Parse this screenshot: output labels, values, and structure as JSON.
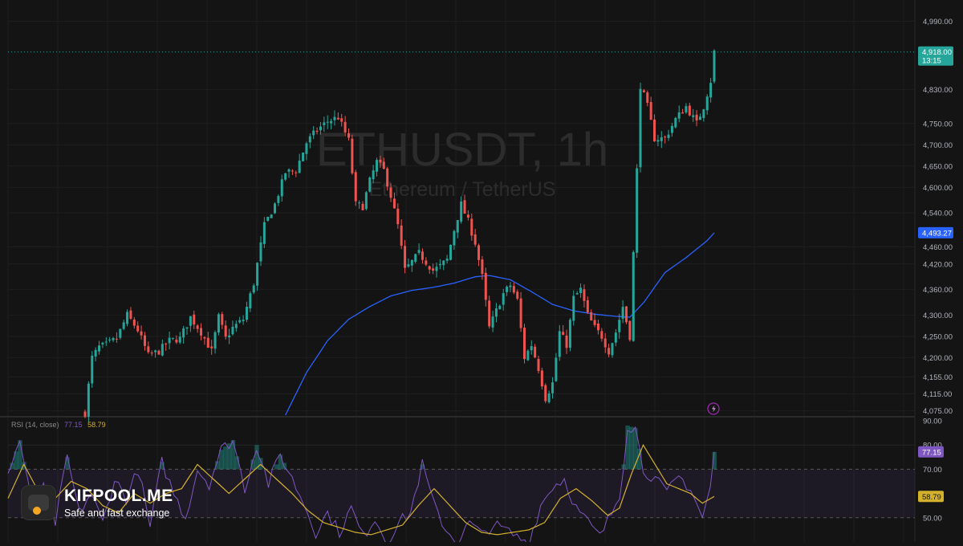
{
  "watermark": {
    "symbol": "ETHUSDT, 1h",
    "name": "Ethereum / TetherUS"
  },
  "brand": {
    "name": "KIFPOOL.ME",
    "tagline": "Safe and fast exchange"
  },
  "rsi_legend": {
    "label": "RSI (14, close)",
    "rsi_value": "77.15",
    "ma_value": "58.79"
  },
  "price_axis": {
    "ticks": [
      "4,990.00",
      "4,830.00",
      "4,750.00",
      "4,700.00",
      "4,650.00",
      "4,600.00",
      "4,540.00",
      "4,460.00",
      "4,420.00",
      "4,360.00",
      "4,300.00",
      "4,250.00",
      "4,200.00",
      "4,155.00",
      "4,115.00",
      "4,075.00"
    ],
    "current_price_label": "4,918.00",
    "countdown_label": "13:15",
    "ma_label": "4,493.27"
  },
  "rsi_axis": {
    "ticks": [
      "90.00",
      "80.00",
      "70.00",
      "50.00"
    ],
    "rsi_label": "77.15",
    "ma_label": "58.79"
  },
  "colors": {
    "up": "#26a69a",
    "down": "#ef5350",
    "ma": "#2962ff",
    "rsi": "#7e57c2",
    "rsi_ma": "#d4b12d",
    "background": "#141414"
  },
  "chart_data": [
    {
      "type": "candlestick",
      "title": "ETHUSDT, 1h",
      "subtitle": "Ethereum / TetherUS",
      "ylim": [
        4065,
        5040
      ],
      "candle_count": 180,
      "close_path": [
        [
          0,
          4070
        ],
        [
          2,
          4200
        ],
        [
          4,
          4225
        ],
        [
          6,
          4230
        ],
        [
          9,
          4245
        ],
        [
          12,
          4300
        ],
        [
          15,
          4265
        ],
        [
          18,
          4205
        ],
        [
          21,
          4215
        ],
        [
          24,
          4240
        ],
        [
          27,
          4245
        ],
        [
          30,
          4295
        ],
        [
          33,
          4260
        ],
        [
          36,
          4215
        ],
        [
          38,
          4295
        ],
        [
          40,
          4245
        ],
        [
          42,
          4270
        ],
        [
          45,
          4290
        ],
        [
          48,
          4375
        ],
        [
          51,
          4510
        ],
        [
          54,
          4560
        ],
        [
          57,
          4635
        ],
        [
          60,
          4640
        ],
        [
          63,
          4705
        ],
        [
          66,
          4735
        ],
        [
          69,
          4755
        ],
        [
          72,
          4765
        ],
        [
          75,
          4710
        ],
        [
          77,
          4560
        ],
        [
          79,
          4555
        ],
        [
          81,
          4615
        ],
        [
          83,
          4660
        ],
        [
          85,
          4640
        ],
        [
          87,
          4580
        ],
        [
          89,
          4510
        ],
        [
          91,
          4405
        ],
        [
          93,
          4425
        ],
        [
          95,
          4445
        ],
        [
          97,
          4425
        ],
        [
          99,
          4405
        ],
        [
          101,
          4415
        ],
        [
          103,
          4430
        ],
        [
          105,
          4500
        ],
        [
          107,
          4560
        ],
        [
          109,
          4520
        ],
        [
          111,
          4470
        ],
        [
          113,
          4390
        ],
        [
          115,
          4270
        ],
        [
          117,
          4310
        ],
        [
          119,
          4350
        ],
        [
          121,
          4370
        ],
        [
          123,
          4335
        ],
        [
          125,
          4200
        ],
        [
          127,
          4230
        ],
        [
          129,
          4175
        ],
        [
          131,
          4105
        ],
        [
          133,
          4140
        ],
        [
          135,
          4260
        ],
        [
          137,
          4230
        ],
        [
          139,
          4340
        ],
        [
          141,
          4360
        ],
        [
          143,
          4300
        ],
        [
          145,
          4270
        ],
        [
          147,
          4250
        ],
        [
          149,
          4215
        ],
        [
          151,
          4260
        ],
        [
          153,
          4320
        ],
        [
          155,
          4250
        ],
        [
          157,
          4640
        ],
        [
          158,
          4840
        ],
        [
          160,
          4790
        ],
        [
          162,
          4715
        ],
        [
          165,
          4715
        ],
        [
          168,
          4760
        ],
        [
          171,
          4790
        ],
        [
          174,
          4750
        ],
        [
          176,
          4790
        ],
        [
          178,
          4850
        ],
        [
          179,
          4918
        ]
      ],
      "moving_average": {
        "start_index": 57,
        "path": [
          [
            57,
            4065
          ],
          [
            63,
            4165
          ],
          [
            69,
            4240
          ],
          [
            75,
            4290
          ],
          [
            81,
            4320
          ],
          [
            87,
            4345
          ],
          [
            93,
            4358
          ],
          [
            99,
            4365
          ],
          [
            105,
            4375
          ],
          [
            111,
            4390
          ],
          [
            115,
            4393
          ],
          [
            121,
            4383
          ],
          [
            127,
            4355
          ],
          [
            133,
            4325
          ],
          [
            139,
            4310
          ],
          [
            145,
            4302
          ],
          [
            151,
            4297
          ],
          [
            155,
            4295
          ],
          [
            159,
            4330
          ],
          [
            165,
            4400
          ],
          [
            171,
            4435
          ],
          [
            177,
            4475
          ],
          [
            179,
            4493.27
          ]
        ],
        "last": 4493.27
      },
      "last_price": 4918.0
    },
    {
      "type": "line",
      "title": "RSI (14, close)",
      "ylim": [
        40,
        90
      ],
      "bands": [
        50,
        70
      ],
      "series": [
        {
          "name": "RSI",
          "values_path": [
            [
              0,
              68
            ],
            [
              3,
              82
            ],
            [
              6,
              55
            ],
            [
              9,
              62
            ],
            [
              12,
              48
            ],
            [
              15,
              75
            ],
            [
              18,
              52
            ],
            [
              21,
              60
            ],
            [
              24,
              48
            ],
            [
              27,
              66
            ],
            [
              30,
              58
            ],
            [
              33,
              70
            ],
            [
              36,
              46
            ],
            [
              39,
              73
            ],
            [
              42,
              60
            ],
            [
              45,
              50
            ],
            [
              48,
              70
            ],
            [
              51,
              64
            ],
            [
              54,
              78
            ],
            [
              57,
              82
            ],
            [
              60,
              62
            ],
            [
              63,
              80
            ],
            [
              66,
              64
            ],
            [
              69,
              76
            ],
            [
              72,
              66
            ],
            [
              75,
              56
            ],
            [
              78,
              44
            ],
            [
              81,
              52
            ],
            [
              84,
              44
            ],
            [
              87,
              54
            ],
            [
              90,
              42
            ],
            [
              93,
              50
            ],
            [
              96,
              40
            ],
            [
              99,
              48
            ],
            [
              102,
              52
            ],
            [
              105,
              72
            ],
            [
              108,
              55
            ],
            [
              111,
              45
            ],
            [
              114,
              40
            ],
            [
              117,
              48
            ],
            [
              120,
              43
            ],
            [
              123,
              47
            ],
            [
              126,
              45
            ],
            [
              129,
              42
            ],
            [
              132,
              40
            ],
            [
              135,
              55
            ],
            [
              138,
              63
            ],
            [
              141,
              66
            ],
            [
              144,
              54
            ],
            [
              147,
              48
            ],
            [
              150,
              42
            ],
            [
              153,
              52
            ],
            [
              155,
              60
            ],
            [
              156,
              72
            ],
            [
              157,
              88
            ],
            [
              159,
              87
            ],
            [
              161,
              70
            ],
            [
              164,
              66
            ],
            [
              167,
              60
            ],
            [
              170,
              67
            ],
            [
              173,
              62
            ],
            [
              176,
              50
            ],
            [
              178,
              62
            ],
            [
              179,
              77.15
            ]
          ],
          "last": 77.15
        },
        {
          "name": "RSI-based MA",
          "values_path": [
            [
              0,
              58
            ],
            [
              4,
              72
            ],
            [
              8,
              60
            ],
            [
              12,
              58
            ],
            [
              16,
              65
            ],
            [
              20,
              62
            ],
            [
              24,
              55
            ],
            [
              28,
              52
            ],
            [
              32,
              60
            ],
            [
              36,
              56
            ],
            [
              40,
              60
            ],
            [
              44,
              62
            ],
            [
              48,
              72
            ],
            [
              52,
              66
            ],
            [
              56,
              60
            ],
            [
              60,
              66
            ],
            [
              64,
              72
            ],
            [
              68,
              66
            ],
            [
              72,
              60
            ],
            [
              76,
              53
            ],
            [
              80,
              48
            ],
            [
              84,
              46
            ],
            [
              88,
              44
            ],
            [
              92,
              43
            ],
            [
              96,
              45
            ],
            [
              100,
              47
            ],
            [
              104,
              55
            ],
            [
              108,
              62
            ],
            [
              112,
              55
            ],
            [
              116,
              48
            ],
            [
              120,
              44
            ],
            [
              124,
              43
            ],
            [
              128,
              44
            ],
            [
              132,
              45
            ],
            [
              136,
              48
            ],
            [
              140,
              58
            ],
            [
              144,
              62
            ],
            [
              148,
              57
            ],
            [
              152,
              51
            ],
            [
              155,
              54
            ],
            [
              158,
              68
            ],
            [
              161,
              80
            ],
            [
              164,
              72
            ],
            [
              167,
              64
            ],
            [
              170,
              62
            ],
            [
              173,
              60
            ],
            [
              176,
              56
            ],
            [
              179,
              58.79
            ]
          ],
          "last": 58.79
        }
      ]
    }
  ]
}
